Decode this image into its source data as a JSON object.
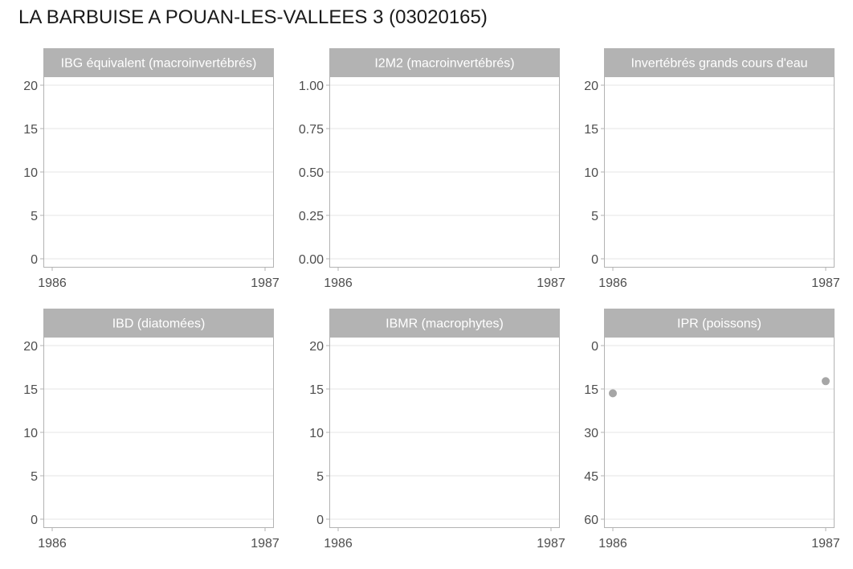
{
  "title": "LA BARBUISE A POUAN-LES-VALLEES 3 (03020165)",
  "colors": {
    "strip_bg": "#b3b3b3",
    "strip_text": "#ffffff",
    "panel_border": "#b3b3b3",
    "grid": "#e5e5e5",
    "tick_text": "#4d4d4d",
    "point": "#a6a6a6"
  },
  "chart_data": [
    {
      "type": "scatter",
      "panel_title": "IBG équivalent (macroinvertébrés)",
      "x_ticks": [
        "1986",
        "1987"
      ],
      "y_ticks": [
        "0",
        "5",
        "10",
        "15",
        "20"
      ],
      "ylim": [
        0,
        20
      ],
      "y_reversed": false,
      "grid": true,
      "points": []
    },
    {
      "type": "scatter",
      "panel_title": "I2M2 (macroinvertébrés)",
      "x_ticks": [
        "1986",
        "1987"
      ],
      "y_ticks": [
        "0.00",
        "0.25",
        "0.50",
        "0.75",
        "1.00"
      ],
      "ylim": [
        0,
        1
      ],
      "y_reversed": false,
      "grid": true,
      "points": []
    },
    {
      "type": "scatter",
      "panel_title": "Invertébrés grands cours d'eau",
      "x_ticks": [
        "1986",
        "1987"
      ],
      "y_ticks": [
        "0",
        "5",
        "10",
        "15",
        "20"
      ],
      "ylim": [
        0,
        20
      ],
      "y_reversed": false,
      "grid": true,
      "points": []
    },
    {
      "type": "scatter",
      "panel_title": "IBD (diatomées)",
      "x_ticks": [
        "1986",
        "1987"
      ],
      "y_ticks": [
        "0",
        "5",
        "10",
        "15",
        "20"
      ],
      "ylim": [
        0,
        20
      ],
      "y_reversed": false,
      "grid": true,
      "points": []
    },
    {
      "type": "scatter",
      "panel_title": "IBMR (macrophytes)",
      "x_ticks": [
        "1986",
        "1987"
      ],
      "y_ticks": [
        "0",
        "5",
        "10",
        "15",
        "20"
      ],
      "ylim": [
        0,
        20
      ],
      "y_reversed": false,
      "grid": true,
      "points": []
    },
    {
      "type": "scatter",
      "panel_title": "IPR (poissons)",
      "x_ticks": [
        "1986",
        "1987"
      ],
      "y_ticks": [
        "0",
        "15",
        "30",
        "45",
        "60"
      ],
      "ylim": [
        0,
        60
      ],
      "y_reversed": true,
      "grid": true,
      "points": [
        {
          "x": 1986,
          "y": 16.5
        },
        {
          "x": 1987,
          "y": 12.3
        }
      ]
    }
  ]
}
